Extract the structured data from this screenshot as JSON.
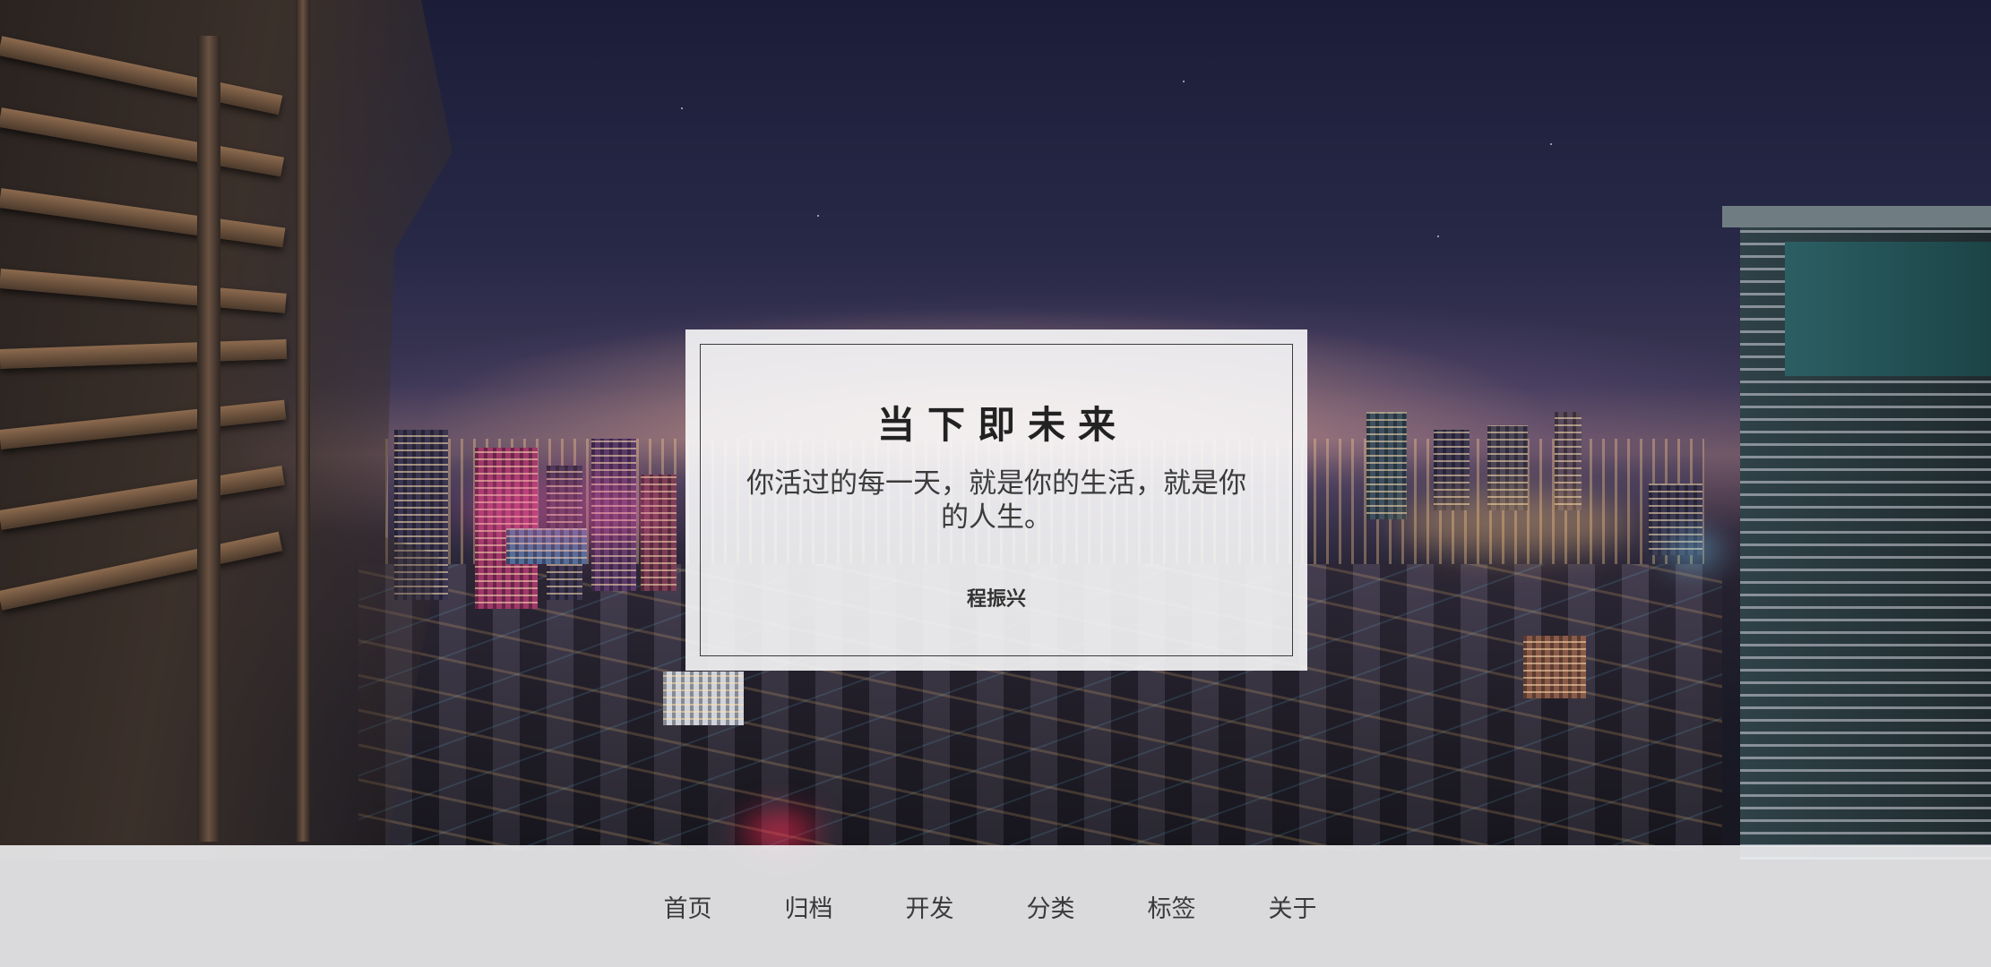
{
  "quote": {
    "title": "当下即未来",
    "body": "你活过的每一天，就是你的生活，就是你的人生。",
    "author": "程振兴"
  },
  "nav": {
    "items": [
      {
        "label": "首页"
      },
      {
        "label": "归档"
      },
      {
        "label": "开发"
      },
      {
        "label": "分类"
      },
      {
        "label": "标签"
      },
      {
        "label": "关于"
      }
    ]
  },
  "background": {
    "description_icon": "night-city-photo",
    "sky_color": "#1b1d38",
    "card_color": "#f8f8fa",
    "nav_color": "#f0f0f2"
  }
}
